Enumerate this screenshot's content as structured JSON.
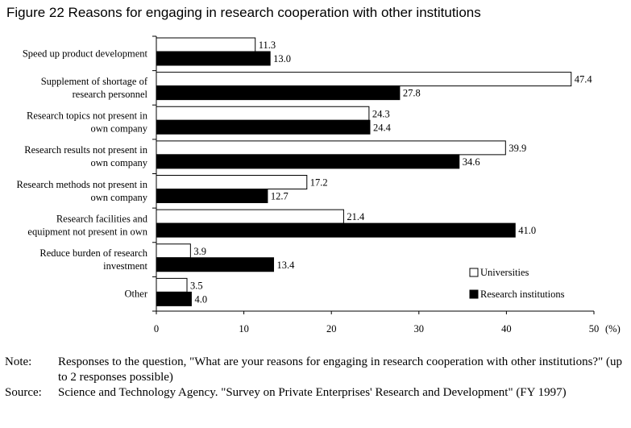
{
  "chart_data": {
    "type": "bar",
    "orientation": "horizontal",
    "title": "Figure 22 Reasons for engaging in research cooperation with other institutions",
    "categories": [
      [
        "Speed up product development"
      ],
      [
        "Supplement of shortage of",
        "research personnel"
      ],
      [
        "Research topics not present in",
        "own company"
      ],
      [
        "Research results not present in",
        "own company"
      ],
      [
        "Research methods not present in",
        "own company"
      ],
      [
        "Research facilities and",
        "equipment not present in own"
      ],
      [
        "Reduce burden of research",
        "investment"
      ],
      [
        "Other"
      ]
    ],
    "series": [
      {
        "name": "Universities",
        "color": "#ffffff",
        "values": [
          11.3,
          47.4,
          24.3,
          39.9,
          17.2,
          21.4,
          3.9,
          3.5
        ]
      },
      {
        "name": "Research institutions",
        "color": "#000000",
        "values": [
          13.0,
          27.8,
          24.4,
          34.6,
          12.7,
          41.0,
          13.4,
          4.0
        ]
      }
    ],
    "xlim": [
      0,
      50
    ],
    "xticks": [
      "0",
      "10",
      "20",
      "30",
      "40",
      "50"
    ],
    "xunit": "(%)",
    "legend_position": "bottom-right",
    "grid": false
  },
  "note": {
    "label": "Note:",
    "text": "Responses to the question, \"What are your reasons for engaging in research cooperation with other institutions?\" (up to 2 responses possible)"
  },
  "source": {
    "label": "Source:",
    "text": "Science and Technology Agency. \"Survey on Private Enterprises' Research and Development\" (FY 1997)"
  }
}
